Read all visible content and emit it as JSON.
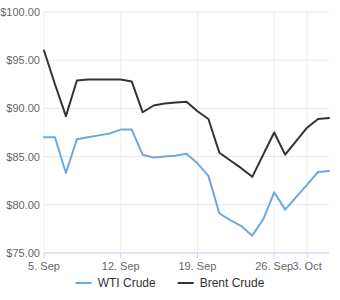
{
  "chart_data": {
    "type": "line",
    "categories": [
      "5. Sep",
      null,
      null,
      null,
      null,
      null,
      null,
      "12. Sep",
      null,
      null,
      null,
      null,
      null,
      null,
      "19. Sep",
      null,
      null,
      null,
      null,
      null,
      null,
      "26. Sep",
      null,
      null,
      "3. Oct",
      null,
      null
    ],
    "series": [
      {
        "name": "WTI Crude",
        "color": "#6fa8dc",
        "values": [
          87,
          87,
          83.3,
          86.8,
          87,
          87.2,
          87.4,
          87.8,
          87.8,
          85.2,
          84.9,
          85,
          85.1,
          85.3,
          84.3,
          83,
          79.1,
          78.4,
          77.8,
          76.8,
          78.5,
          81.3,
          79.5,
          80.8,
          82.1,
          83.4,
          83.5
        ]
      },
      {
        "name": "Brent Crude",
        "color": "#333333",
        "values": [
          96,
          92.5,
          89.2,
          92.9,
          93,
          93,
          93,
          93,
          92.8,
          89.6,
          90.3,
          90.5,
          90.6,
          90.7,
          89.7,
          88.9,
          85.4,
          84.6,
          83.8,
          82.9,
          85.2,
          87.5,
          85.2,
          86.6,
          88,
          88.9,
          89
        ]
      }
    ],
    "ylim": [
      75,
      100
    ],
    "yticks": [
      {
        "value": 75,
        "label": "$75.00"
      },
      {
        "value": 80,
        "label": "$80.00"
      },
      {
        "value": 85,
        "label": "$85.00"
      },
      {
        "value": 90,
        "label": "$90.00"
      },
      {
        "value": 95,
        "label": "$95.00"
      },
      {
        "value": 100,
        "label": "$100.00"
      }
    ],
    "grid": true,
    "legend": "bottom"
  }
}
